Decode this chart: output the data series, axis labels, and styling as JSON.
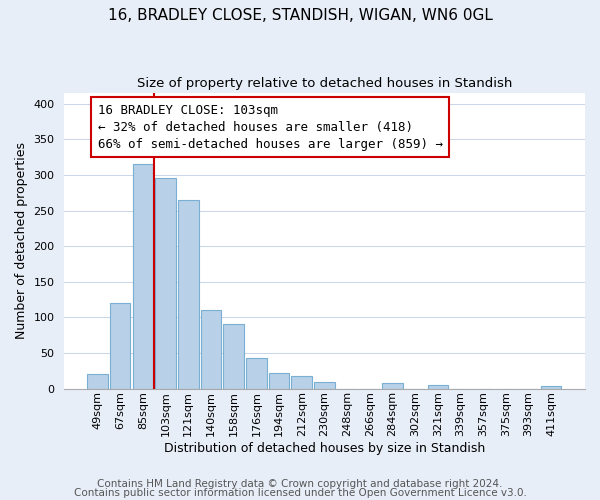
{
  "title_line1": "16, BRADLEY CLOSE, STANDISH, WIGAN, WN6 0GL",
  "title_line2": "Size of property relative to detached houses in Standish",
  "xlabel": "Distribution of detached houses by size in Standish",
  "ylabel": "Number of detached properties",
  "bar_labels": [
    "49sqm",
    "67sqm",
    "85sqm",
    "103sqm",
    "121sqm",
    "140sqm",
    "158sqm",
    "176sqm",
    "194sqm",
    "212sqm",
    "230sqm",
    "248sqm",
    "266sqm",
    "284sqm",
    "302sqm",
    "321sqm",
    "339sqm",
    "357sqm",
    "375sqm",
    "393sqm",
    "411sqm"
  ],
  "bar_heights": [
    20,
    120,
    315,
    295,
    265,
    110,
    90,
    43,
    22,
    18,
    9,
    0,
    0,
    8,
    0,
    5,
    0,
    0,
    0,
    0,
    3
  ],
  "bar_color": "#b8d0e8",
  "bar_edge_color": "#7aafd4",
  "vline_color": "#cc0000",
  "annotation_lines": [
    "16 BRADLEY CLOSE: 103sqm",
    "← 32% of detached houses are smaller (418)",
    "66% of semi-detached houses are larger (859) →"
  ],
  "annotation_fontsize": 9,
  "box_edge_color": "#cc0000",
  "ylim": [
    0,
    415
  ],
  "yticks": [
    0,
    50,
    100,
    150,
    200,
    250,
    300,
    350,
    400
  ],
  "footer_line1": "Contains HM Land Registry data © Crown copyright and database right 2024.",
  "footer_line2": "Contains public sector information licensed under the Open Government Licence v3.0.",
  "background_color": "#e8eef8",
  "plot_background": "#ffffff",
  "title_fontsize": 11,
  "subtitle_fontsize": 9.5,
  "xlabel_fontsize": 9,
  "ylabel_fontsize": 9,
  "tick_fontsize": 8,
  "footer_fontsize": 7.5
}
